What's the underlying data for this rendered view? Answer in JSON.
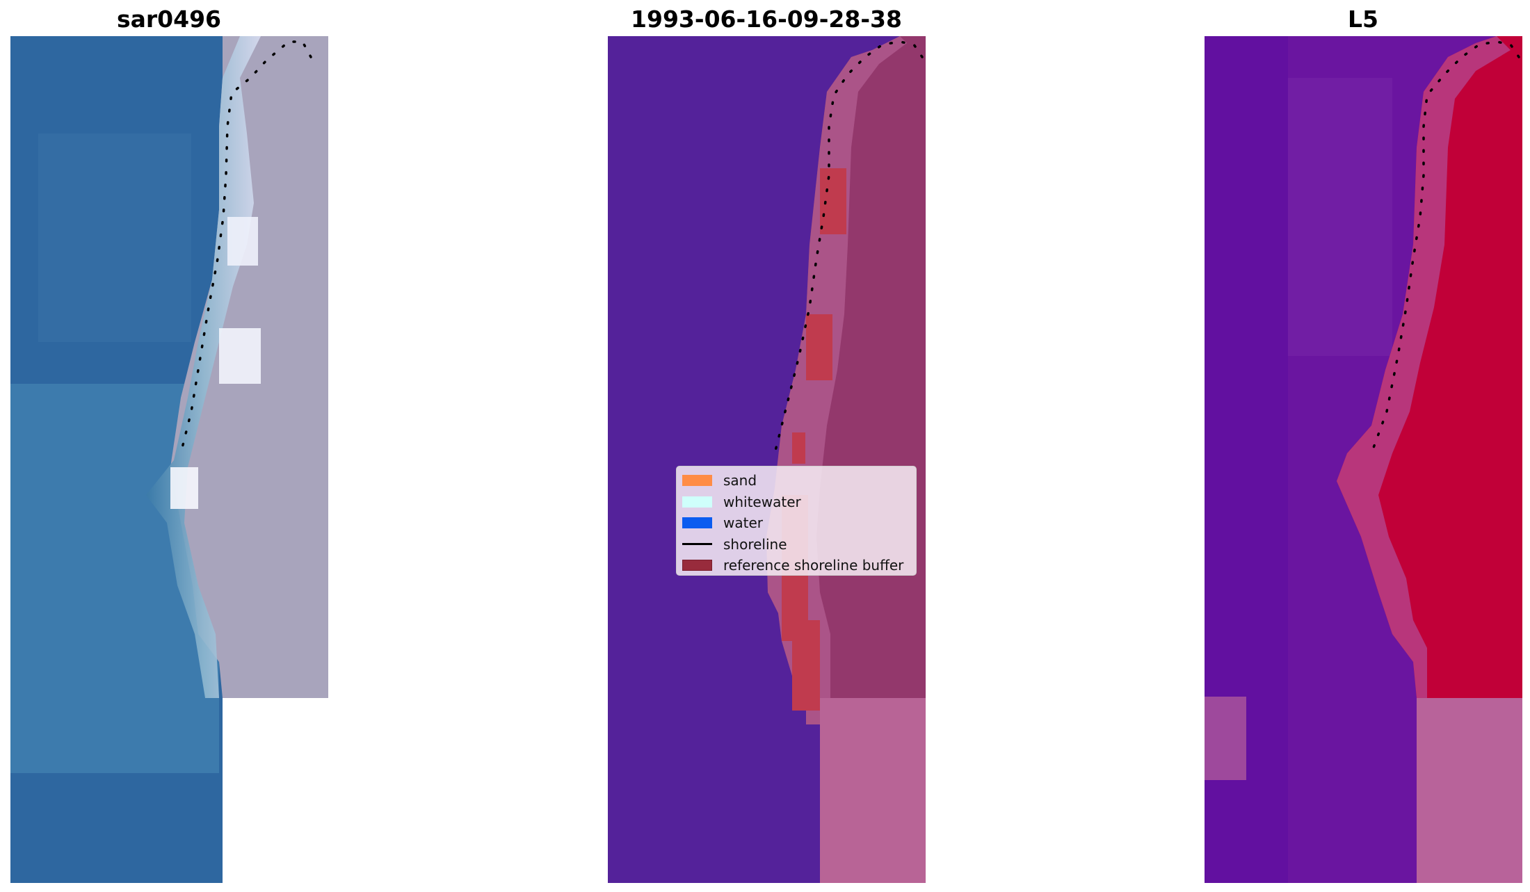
{
  "titles": {
    "left": "sar0496",
    "middle": "1993-06-16-09-28-38",
    "right": "L5"
  },
  "legend": {
    "items": [
      {
        "label": "sand",
        "kind": "patch",
        "color": "#ff8c45"
      },
      {
        "label": "whitewater",
        "kind": "patch",
        "color": "#cffffb"
      },
      {
        "label": "water",
        "kind": "patch",
        "color": "#0b5cf0"
      },
      {
        "label": "shoreline",
        "kind": "line",
        "color": "#000000"
      },
      {
        "label": "reference shoreline buffer",
        "kind": "patch",
        "color": "#982b3c",
        "edge": "#7a1f2e"
      }
    ]
  },
  "colors": {
    "water_rgb": "#2e67a0",
    "sand_rgb": "#a8a4bc",
    "whitewater_rgb": "#e8ecfa",
    "nodata": "#ffffff",
    "class_water": "#54229a",
    "class_sand": "#93386c",
    "class_buffer": "#c03b4e",
    "class_nodata": "#b86496",
    "index_water": "#6a15a0",
    "index_sand": "#c10038",
    "index_nodata": "#b8639a",
    "shoreline": "#000000"
  },
  "icons": [
    "legend-swatch-sand",
    "legend-swatch-whitewater",
    "legend-swatch-water",
    "legend-line-shoreline",
    "legend-swatch-buffer"
  ]
}
